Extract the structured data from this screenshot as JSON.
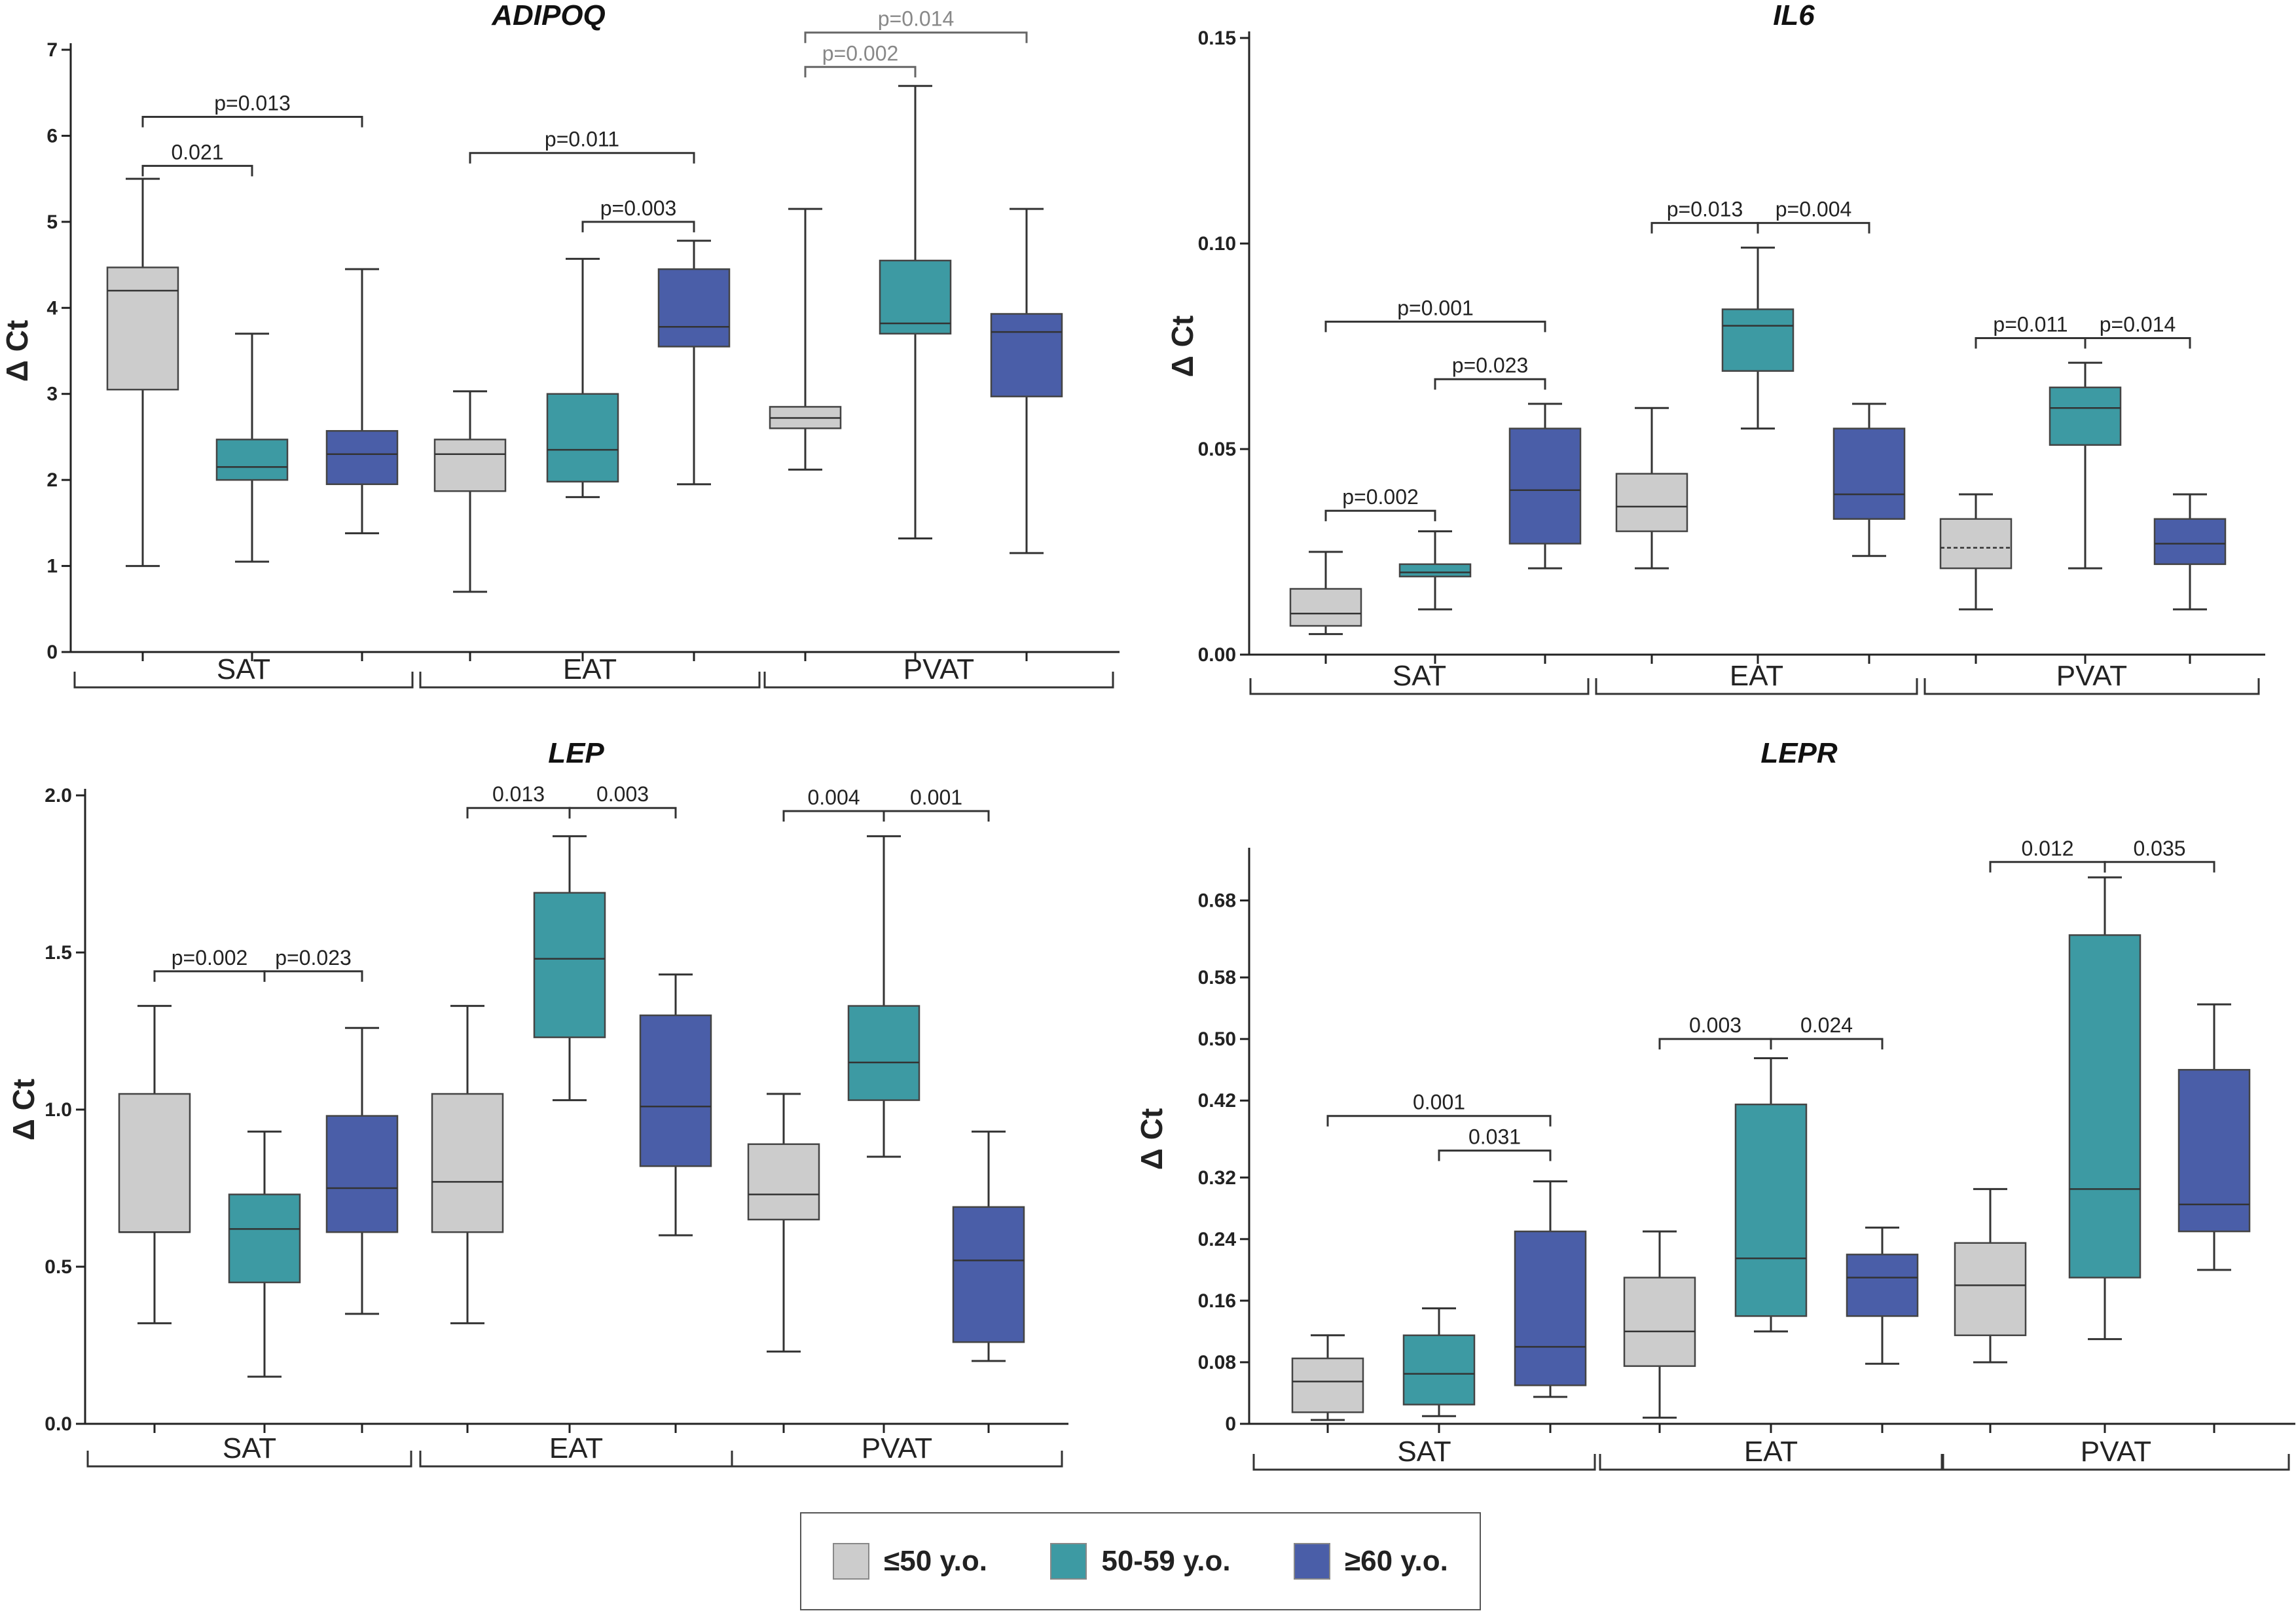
{
  "colors": {
    "g1": "#cccccc",
    "g2": "#3d9aa3",
    "g3": "#4a5ea8"
  },
  "legend": [
    {
      "label": "≤50 y.o.",
      "color": "#cccccc"
    },
    {
      "label": "50-59 y.o.",
      "color": "#3d9aa3"
    },
    {
      "label": "≥60 y.o.",
      "color": "#4a5ea8"
    }
  ],
  "chart_data": [
    {
      "type": "box",
      "title": "ADIPOQ",
      "ylabel": "Δ Ct",
      "ylim": [
        0,
        7
      ],
      "yticks": [
        "0",
        "1",
        "2",
        "3",
        "4",
        "5",
        "6",
        "7"
      ],
      "groups": [
        "SAT",
        "EAT",
        "PVAT"
      ],
      "boxes": [
        {
          "group": "SAT",
          "age": "≤50 y.o.",
          "min": 1.0,
          "q1": 3.05,
          "median": 4.2,
          "q3": 4.47,
          "max": 5.5,
          "dashed_median": false
        },
        {
          "group": "SAT",
          "age": "50-59 y.o.",
          "min": 1.05,
          "q1": 2.0,
          "median": 2.15,
          "q3": 2.47,
          "max": 3.7,
          "dashed_median": false
        },
        {
          "group": "SAT",
          "age": "≥60 y.o.",
          "min": 1.38,
          "q1": 1.95,
          "median": 2.3,
          "q3": 2.57,
          "max": 4.45,
          "dashed_median": false
        },
        {
          "group": "EAT",
          "age": "≤50 y.o.",
          "min": 0.7,
          "q1": 1.87,
          "median": 2.3,
          "q3": 2.47,
          "max": 3.03,
          "dashed_median": false
        },
        {
          "group": "EAT",
          "age": "50-59 y.o.",
          "min": 1.8,
          "q1": 1.98,
          "median": 2.35,
          "q3": 3.0,
          "max": 4.57,
          "dashed_median": false
        },
        {
          "group": "EAT",
          "age": "≥60 y.o.",
          "min": 1.95,
          "q1": 3.55,
          "median": 3.78,
          "q3": 4.45,
          "max": 4.78,
          "dashed_median": false
        },
        {
          "group": "PVAT",
          "age": "≤50 y.o.",
          "min": 2.12,
          "q1": 2.6,
          "median": 2.72,
          "q3": 2.85,
          "max": 5.15,
          "dashed_median": false
        },
        {
          "group": "PVAT",
          "age": "50-59 y.o.",
          "min": 1.32,
          "q1": 3.7,
          "median": 3.82,
          "q3": 4.55,
          "max": 6.58,
          "dashed_median": false
        },
        {
          "group": "PVAT",
          "age": "≥60 y.o.",
          "min": 1.15,
          "q1": 2.97,
          "median": 3.72,
          "q3": 3.93,
          "max": 5.15,
          "dashed_median": false
        }
      ],
      "annotations": [
        {
          "from": 0,
          "to": 1,
          "level": 5.65,
          "text": "0.021",
          "grey": false
        },
        {
          "from": 0,
          "to": 2,
          "level": 6.22,
          "text": "p=0.013",
          "grey": false
        },
        {
          "from": 3,
          "to": 5,
          "level": 5.8,
          "text": "p=0.011",
          "grey": false
        },
        {
          "from": 4,
          "to": 5,
          "level": 5.0,
          "text": "p=0.003",
          "grey": false
        },
        {
          "from": 6,
          "to": 7,
          "level": 6.8,
          "text": "p=0.002",
          "grey": true
        },
        {
          "from": 6,
          "to": 8,
          "level": 7.2,
          "text": "p=0.014",
          "grey": true
        }
      ]
    },
    {
      "type": "box",
      "title": "IL6",
      "ylabel": "Δ Ct",
      "ylim": [
        0,
        0.15
      ],
      "yticks": [
        "0.00",
        "0.05",
        "0.10",
        "0.15"
      ],
      "groups": [
        "SAT",
        "EAT",
        "PVAT"
      ],
      "boxes": [
        {
          "group": "SAT",
          "age": "≤50 y.o.",
          "min": 0.005,
          "q1": 0.007,
          "median": 0.01,
          "q3": 0.016,
          "max": 0.025,
          "dashed_median": false
        },
        {
          "group": "SAT",
          "age": "50-59 y.o.",
          "min": 0.011,
          "q1": 0.019,
          "median": 0.02,
          "q3": 0.022,
          "max": 0.03,
          "dashed_median": false
        },
        {
          "group": "SAT",
          "age": "≥60 y.o.",
          "min": 0.021,
          "q1": 0.027,
          "median": 0.04,
          "q3": 0.055,
          "max": 0.061,
          "dashed_median": false
        },
        {
          "group": "EAT",
          "age": "≤50 y.o.",
          "min": 0.021,
          "q1": 0.03,
          "median": 0.036,
          "q3": 0.044,
          "max": 0.06,
          "dashed_median": false
        },
        {
          "group": "EAT",
          "age": "50-59 y.o.",
          "min": 0.055,
          "q1": 0.069,
          "median": 0.08,
          "q3": 0.084,
          "max": 0.099,
          "dashed_median": false
        },
        {
          "group": "EAT",
          "age": "≥60 y.o.",
          "min": 0.024,
          "q1": 0.033,
          "median": 0.039,
          "q3": 0.055,
          "max": 0.061,
          "dashed_median": false
        },
        {
          "group": "PVAT",
          "age": "≤50 y.o.",
          "min": 0.011,
          "q1": 0.021,
          "median": 0.026,
          "q3": 0.033,
          "max": 0.039,
          "dashed_median": true
        },
        {
          "group": "PVAT",
          "age": "50-59 y.o.",
          "min": 0.021,
          "q1": 0.051,
          "median": 0.06,
          "q3": 0.065,
          "max": 0.071,
          "dashed_median": false
        },
        {
          "group": "PVAT",
          "age": "≥60 y.o.",
          "min": 0.011,
          "q1": 0.022,
          "median": 0.027,
          "q3": 0.033,
          "max": 0.039,
          "dashed_median": false
        }
      ],
      "annotations": [
        {
          "from": 0,
          "to": 1,
          "level": 0.035,
          "text": "p=0.002",
          "grey": false
        },
        {
          "from": 1,
          "to": 2,
          "level": 0.067,
          "text": "p=0.023",
          "grey": false
        },
        {
          "from": 0,
          "to": 2,
          "level": 0.081,
          "text": "p=0.001",
          "grey": false
        },
        {
          "from": 3,
          "to": 4,
          "level": 0.105,
          "text": "p=0.013",
          "grey": false
        },
        {
          "from": 4,
          "to": 5,
          "level": 0.105,
          "text": "p=0.004",
          "grey": false
        },
        {
          "from": 6,
          "to": 7,
          "level": 0.077,
          "text": "p=0.011",
          "grey": false
        },
        {
          "from": 7,
          "to": 8,
          "level": 0.077,
          "text": "p=0.014",
          "grey": false
        }
      ]
    },
    {
      "type": "box",
      "title": "LEP",
      "ylabel": "Δ Ct",
      "ylim": [
        0,
        2.0
      ],
      "yticks": [
        "0.0",
        "0.5",
        "1.0",
        "1.5",
        "2.0"
      ],
      "groups": [
        "SAT",
        "EAT",
        "PVAT"
      ],
      "boxes": [
        {
          "group": "SAT",
          "age": "≤50 y.o.",
          "min": 0.32,
          "q1": 0.61,
          "median": 0.61,
          "q3": 1.05,
          "max": 1.33,
          "dashed_median": false
        },
        {
          "group": "SAT",
          "age": "50-59 y.o.",
          "min": 0.15,
          "q1": 0.45,
          "median": 0.62,
          "q3": 0.73,
          "max": 0.93,
          "dashed_median": false
        },
        {
          "group": "SAT",
          "age": "≥60 y.o.",
          "min": 0.35,
          "q1": 0.61,
          "median": 0.75,
          "q3": 0.98,
          "max": 1.26,
          "dashed_median": false
        },
        {
          "group": "EAT",
          "age": "≤50 y.o.",
          "min": 0.32,
          "q1": 0.61,
          "median": 0.77,
          "q3": 1.05,
          "max": 1.33,
          "dashed_median": false
        },
        {
          "group": "EAT",
          "age": "50-59 y.o.",
          "min": 1.03,
          "q1": 1.23,
          "median": 1.48,
          "q3": 1.69,
          "max": 1.87,
          "dashed_median": false
        },
        {
          "group": "EAT",
          "age": "≥60 y.o.",
          "min": 0.6,
          "q1": 0.82,
          "median": 1.01,
          "q3": 1.3,
          "max": 1.43,
          "dashed_median": false
        },
        {
          "group": "PVAT",
          "age": "≤50 y.o.",
          "min": 0.23,
          "q1": 0.65,
          "median": 0.73,
          "q3": 0.89,
          "max": 1.05,
          "dashed_median": false
        },
        {
          "group": "PVAT",
          "age": "50-59 y.o.",
          "min": 0.85,
          "q1": 1.03,
          "median": 1.15,
          "q3": 1.33,
          "max": 1.87,
          "dashed_median": false
        },
        {
          "group": "PVAT",
          "age": "≥60 y.o.",
          "min": 0.2,
          "q1": 0.26,
          "median": 0.52,
          "q3": 0.69,
          "max": 0.93,
          "dashed_median": false
        }
      ],
      "annotations": [
        {
          "from": 0,
          "to": 1,
          "level": 1.44,
          "text": "p=0.002",
          "grey": false
        },
        {
          "from": 1,
          "to": 2,
          "level": 1.44,
          "text": "p=0.023",
          "grey": false
        },
        {
          "from": 3,
          "to": 4,
          "level": 1.96,
          "text": "0.013",
          "grey": false
        },
        {
          "from": 4,
          "to": 5,
          "level": 1.96,
          "text": "0.003",
          "grey": false
        },
        {
          "from": 6,
          "to": 7,
          "level": 1.95,
          "text": "0.004",
          "grey": false
        },
        {
          "from": 7,
          "to": 8,
          "level": 1.95,
          "text": "0.001",
          "grey": false
        }
      ]
    },
    {
      "type": "box",
      "title": "LEPR",
      "ylabel": "Δ Ct",
      "ylim": [
        0,
        0.74
      ],
      "yticks": [
        "0",
        "0.08",
        "0.16",
        "0.24",
        "0.32",
        "0.42",
        "0.50",
        "0.58",
        "0.68"
      ],
      "groups": [
        "SAT",
        "EAT",
        "PVAT"
      ],
      "boxes": [
        {
          "group": "SAT",
          "age": "≤50 y.o.",
          "min": 0.005,
          "q1": 0.015,
          "median": 0.055,
          "q3": 0.085,
          "max": 0.115,
          "dashed_median": false
        },
        {
          "group": "SAT",
          "age": "50-59 y.o.",
          "min": 0.01,
          "q1": 0.025,
          "median": 0.065,
          "q3": 0.115,
          "max": 0.15,
          "dashed_median": false
        },
        {
          "group": "SAT",
          "age": "≥60 y.o.",
          "min": 0.035,
          "q1": 0.05,
          "median": 0.1,
          "q3": 0.25,
          "max": 0.315,
          "dashed_median": false
        },
        {
          "group": "EAT",
          "age": "≤50 y.o.",
          "min": 0.008,
          "q1": 0.075,
          "median": 0.12,
          "q3": 0.19,
          "max": 0.25,
          "dashed_median": false
        },
        {
          "group": "EAT",
          "age": "50-59 y.o.",
          "min": 0.12,
          "q1": 0.14,
          "median": 0.215,
          "q3": 0.415,
          "max": 0.475,
          "dashed_median": false
        },
        {
          "group": "EAT",
          "age": "≥60 y.o.",
          "min": 0.078,
          "q1": 0.14,
          "median": 0.19,
          "q3": 0.22,
          "max": 0.255,
          "dashed_median": false
        },
        {
          "group": "PVAT",
          "age": "≤50 y.o.",
          "min": 0.08,
          "q1": 0.115,
          "median": 0.18,
          "q3": 0.235,
          "max": 0.305,
          "dashed_median": false
        },
        {
          "group": "PVAT",
          "age": "50-59 y.o.",
          "min": 0.11,
          "q1": 0.19,
          "median": 0.305,
          "q3": 0.635,
          "max": 0.71,
          "dashed_median": false
        },
        {
          "group": "PVAT",
          "age": "≥60 y.o.",
          "min": 0.2,
          "q1": 0.25,
          "median": 0.285,
          "q3": 0.46,
          "max": 0.545,
          "dashed_median": false
        }
      ],
      "annotations": [
        {
          "from": 0,
          "to": 2,
          "level": 0.4,
          "text": "0.001",
          "grey": false
        },
        {
          "from": 1,
          "to": 2,
          "level": 0.355,
          "text": "0.031",
          "grey": false
        },
        {
          "from": 3,
          "to": 4,
          "level": 0.5,
          "text": "0.003",
          "grey": false
        },
        {
          "from": 4,
          "to": 5,
          "level": 0.5,
          "text": "0.024",
          "grey": false
        },
        {
          "from": 6,
          "to": 7,
          "level": 0.73,
          "text": "0.012",
          "grey": false
        },
        {
          "from": 7,
          "to": 8,
          "level": 0.73,
          "text": "0.035",
          "grey": false
        }
      ]
    }
  ]
}
